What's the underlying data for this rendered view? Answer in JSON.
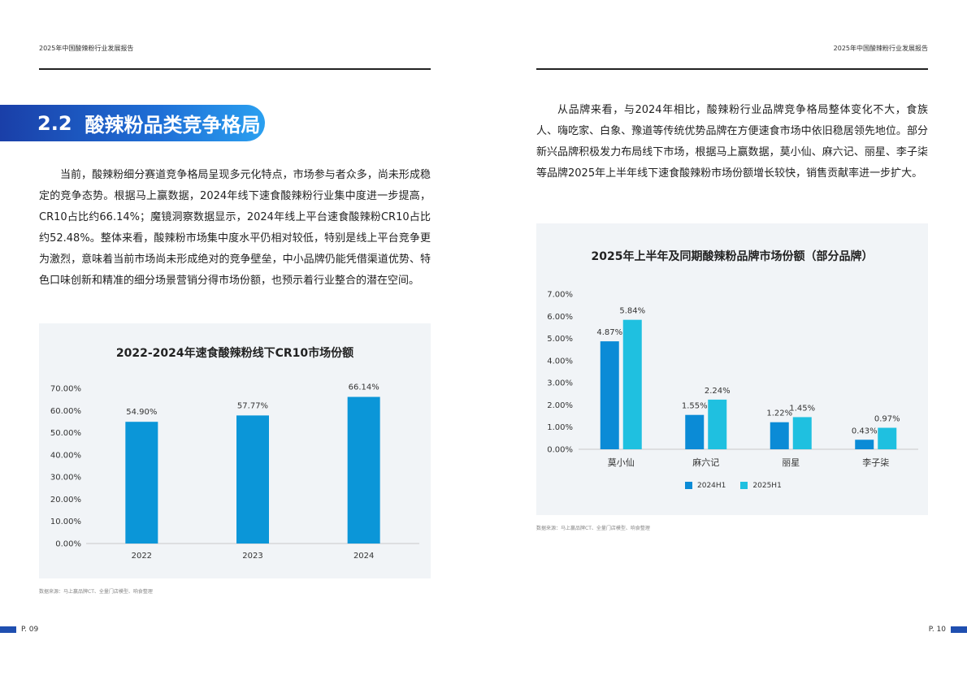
{
  "header": {
    "left": "2025年中国酸辣粉行业发展报告",
    "right": "2025年中国酸辣粉行业发展报告"
  },
  "section": {
    "number": "2.2",
    "title": "酸辣粉品类竞争格局"
  },
  "left_paragraph": "当前，酸辣粉细分赛道竞争格局呈现多元化特点，市场参与者众多，尚未形成稳定的竞争态势。根据马上赢数据，2024年线下速食酸辣粉行业集中度进一步提高，CR10占比约66.14%；魔镜洞察数据显示，2024年线上平台速食酸辣粉CR10占比约52.48%。整体来看，酸辣粉市场集中度水平仍相对较低，特别是线上平台竞争更为激烈，意味着当前市场尚未形成绝对的竞争壁垒，中小品牌仍能凭借渠道优势、特色口味创新和精准的细分场景营销分得市场份额，也预示着行业整合的潜在空间。",
  "right_paragraph": "从品牌来看，与2024年相比，酸辣粉行业品牌竞争格局整体变化不大，食族人、嗨吃家、白象、豫道等传统优势品牌在方便速食市场中依旧稳居领先地位。部分新兴品牌积极发力布局线下市场，根据马上赢数据，莫小仙、麻六记、丽星、李子柒等品牌2025年上半年线下速食酸辣粉市场份额增长较快，销售贡献率进一步扩大。",
  "chart_data": [
    {
      "type": "bar",
      "title": "2022-2024年速食酸辣粉线下CR10市场份额",
      "categories": [
        "2022",
        "2023",
        "2024"
      ],
      "values": [
        54.9,
        57.77,
        66.14
      ],
      "value_labels": [
        "54.90%",
        "57.77%",
        "66.14%"
      ],
      "y_ticks": [
        "0.00%",
        "10.00%",
        "20.00%",
        "30.00%",
        "40.00%",
        "50.00%",
        "60.00%",
        "70.00%"
      ],
      "ylim": [
        0,
        70
      ],
      "color": "#0b96d8",
      "grid": false
    },
    {
      "type": "bar",
      "title": "2025年上半年及同期酸辣粉品牌市场份额（部分品牌）",
      "categories": [
        "莫小仙",
        "麻六记",
        "丽星",
        "李子柒"
      ],
      "series": [
        {
          "name": "2024H1",
          "values": [
            4.87,
            1.55,
            1.22,
            0.43
          ],
          "labels": [
            "4.87%",
            "1.55%",
            "1.22%",
            "0.43%"
          ],
          "color": "#0b8bd6"
        },
        {
          "name": "2025H1",
          "values": [
            5.84,
            2.24,
            1.45,
            0.97
          ],
          "labels": [
            "5.84%",
            "2.24%",
            "1.45%",
            "0.97%"
          ],
          "color": "#1fc0e0"
        }
      ],
      "y_ticks": [
        "0.00%",
        "1.00%",
        "2.00%",
        "3.00%",
        "4.00%",
        "5.00%",
        "6.00%",
        "7.00%"
      ],
      "ylim": [
        0,
        7
      ],
      "legend": "bottom",
      "grid": false
    }
  ],
  "sources": {
    "left": "数据来源：马上赢品牌CT、全量门店模型、响食整理",
    "right": "数据来源：马上赢品牌CT、全量门店模型、响食整理"
  },
  "pages": {
    "left": "P. 09",
    "right": "P. 10"
  }
}
